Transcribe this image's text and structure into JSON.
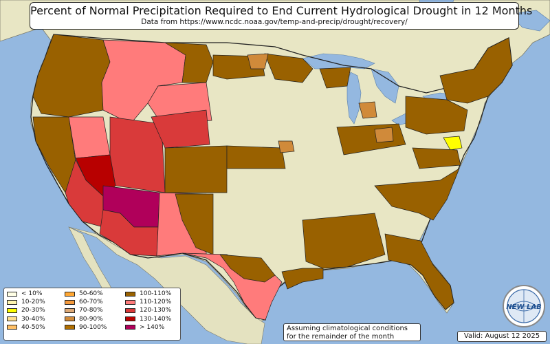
{
  "title": "Percent of Normal Precipitation Required to End Current Hydrological Drought in 12 Months",
  "subtitle": "Data from https://www.ncdc.noaa.gov/temp-and-precip/drought/recovery/",
  "note_line1": "Assuming climatological conditions",
  "note_line2": "for the remainder of the month",
  "valid": "Valid: August 12 2025",
  "logo_text": "NEW LAB",
  "colors": {
    "ocean": "#94b8e0",
    "land": "#e8e6c4",
    "state_border": "#222222"
  },
  "legend": [
    {
      "label": "< 10%",
      "color": "#ffffe6"
    },
    {
      "label": "10-20%",
      "color": "#fff5b0"
    },
    {
      "label": "20-30%",
      "color": "#ffff00"
    },
    {
      "label": "30-40%",
      "color": "#ffdf8f"
    },
    {
      "label": "40-50%",
      "color": "#ffc066"
    },
    {
      "label": "50-60%",
      "color": "#ffa733"
    },
    {
      "label": "60-70%",
      "color": "#f59a3c"
    },
    {
      "label": "70-80%",
      "color": "#deaa78"
    },
    {
      "label": "80-90%",
      "color": "#d08a3a"
    },
    {
      "label": "90-100%",
      "color": "#b06e00"
    },
    {
      "label": "100-110%",
      "color": "#996100"
    },
    {
      "label": "110-120%",
      "color": "#ff7b7b"
    },
    {
      "label": "120-130%",
      "color": "#d93a3a"
    },
    {
      "label": "130-140%",
      "color": "#b80000"
    },
    {
      "label": "> 140%",
      "color": "#b0005a"
    }
  ]
}
